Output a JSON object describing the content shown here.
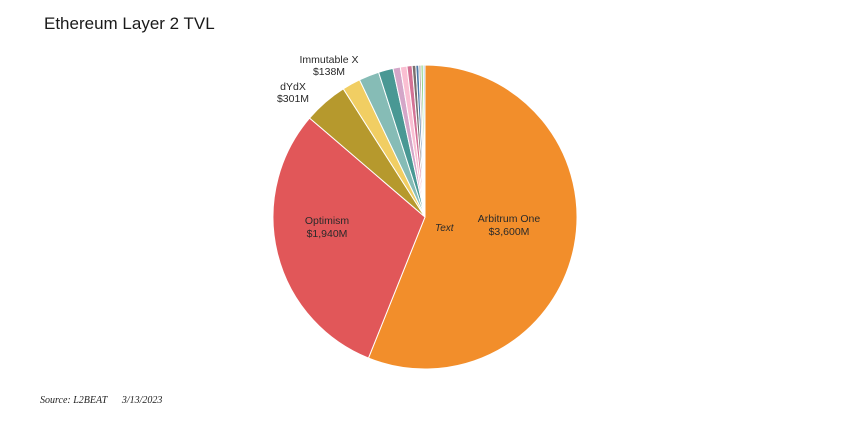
{
  "chart_data": {
    "type": "pie",
    "title": "Ethereum Layer 2 TVL",
    "annotation": "Text",
    "source": "Source: L2BEAT",
    "date": "3/13/2023",
    "slices": [
      {
        "name": "Arbitrum One",
        "value": 3600,
        "value_label": "$3,600M",
        "color": "#F28E2B"
      },
      {
        "name": "Optimism",
        "value": 1940,
        "value_label": "$1,940M",
        "color": "#E15759"
      },
      {
        "name": "dYdX",
        "value": 301,
        "value_label": "$301M",
        "color": "#B6992D"
      },
      {
        "name": "",
        "value": 125,
        "value_label": "",
        "color": "#F1CE63"
      },
      {
        "name": "Immutable X",
        "value": 138,
        "value_label": "$138M",
        "color": "#86BCB6"
      },
      {
        "name": "",
        "value": 100,
        "value_label": "",
        "color": "#499894"
      },
      {
        "name": "",
        "value": 50,
        "value_label": "",
        "color": "#D4A6C8"
      },
      {
        "name": "",
        "value": 45,
        "value_label": "",
        "color": "#FABFD2"
      },
      {
        "name": "",
        "value": 35,
        "value_label": "",
        "color": "#D37295"
      },
      {
        "name": "",
        "value": 25,
        "value_label": "",
        "color": "#79706E"
      },
      {
        "name": "",
        "value": 20,
        "value_label": "",
        "color": "#4E79A7"
      },
      {
        "name": "",
        "value": 15,
        "value_label": "",
        "color": "#BAB0AC"
      },
      {
        "name": "",
        "value": 15,
        "value_label": "",
        "color": "#8CD17D"
      },
      {
        "name": "",
        "value": 12,
        "value_label": "",
        "color": "#A0CBE8"
      }
    ]
  }
}
